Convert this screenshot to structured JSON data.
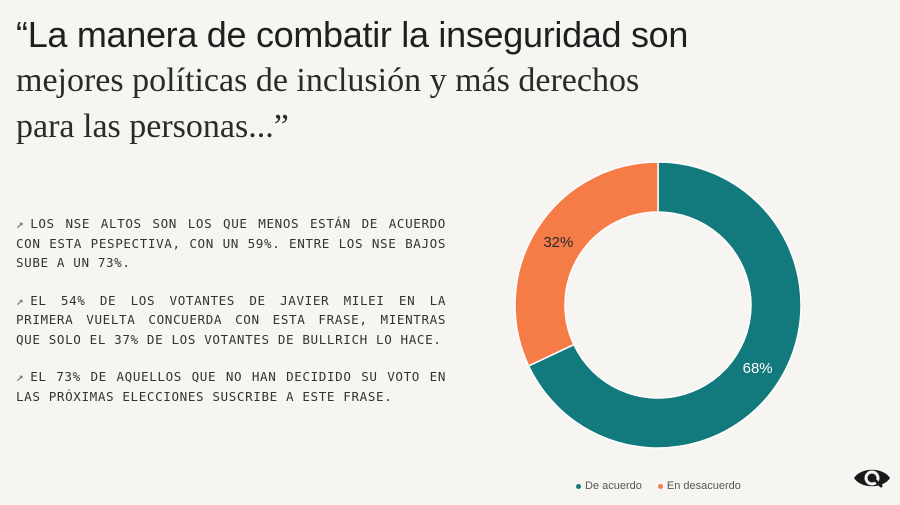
{
  "title": {
    "line1": "“La manera de combatir la inseguridad son",
    "line2": "mejores políticas de inclusión y más derechos",
    "line3": "para las personas...”"
  },
  "bullets": [
    {
      "arrow": "↗",
      "text": "LOS NSE ALTOS SON LOS QUE MENOS ESTÁN DE ACUERDO CON ESTA PESPECTIVA, CON UN 59%. ENTRE LOS NSE BAJOS SUBE A UN 73%."
    },
    {
      "arrow": "↗",
      "text": "EL 54% DE LOS VOTANTES DE JAVIER MILEI EN LA PRIMERA VUELTA CONCUERDA CON ESTA FRASE, MIENTRAS QUE SOLO EL 37% DE LOS VOTANTES DE BULLRICH LO HACE."
    },
    {
      "arrow": "↗",
      "text": "EL 73% DE AQUELLOS QUE NO HAN DECIDIDO SU VOTO EN LAS PRÓXIMAS ELECCIONES SUSCRIBE A ESTE FRASE."
    }
  ],
  "chart_data": {
    "type": "pie",
    "categories": [
      "De acuerdo",
      "En desacuerdo"
    ],
    "values": [
      68,
      32
    ],
    "labels": [
      "68%",
      "32%"
    ],
    "colors": [
      "#12797c",
      "#f57c46"
    ],
    "legend_position": "bottom"
  },
  "logo_icon": "eye-icon"
}
